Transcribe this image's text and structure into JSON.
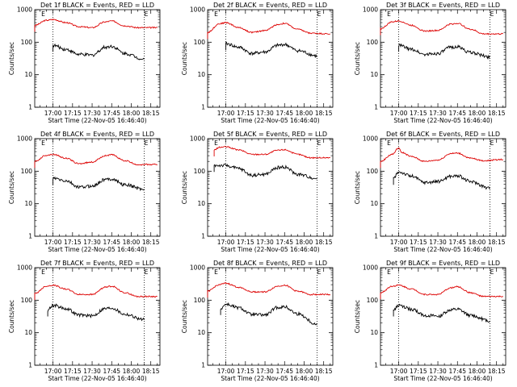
{
  "colors": {
    "events": "#000000",
    "lld": "#dd0000",
    "axis": "#000000",
    "background": "#ffffff"
  },
  "marker_label": "E",
  "chart_data": [
    {
      "type": "line",
      "title": "Det 1f BLACK = Events, RED = LLD",
      "xlabel": "Start Time (22-Nov-05 16:46:40)",
      "ylabel": "Counts/sec",
      "y_log": true,
      "ylim": [
        1,
        1000
      ],
      "x_tick_labels": [
        "17:00",
        "17:15",
        "17:30",
        "17:45",
        "18:00",
        "18:15"
      ],
      "y_tick_labels": [
        "1",
        "10",
        "100",
        "1000"
      ],
      "markers": [
        "16:51",
        "17:00",
        "18:10"
      ],
      "series": [
        {
          "points": [
            [
              "16:46",
              330
            ],
            [
              "16:55",
              470
            ],
            [
              "17:00",
              500
            ],
            [
              "17:10",
              400
            ],
            [
              "17:20",
              300
            ],
            [
              "17:30",
              280
            ],
            [
              "17:40",
              420
            ],
            [
              "17:45",
              450
            ],
            [
              "17:55",
              320
            ],
            [
              "18:05",
              280
            ],
            [
              "18:20",
              280
            ]
          ]
        },
        {
          "points": [
            [
              "17:00",
              80
            ],
            [
              "17:10",
              60
            ],
            [
              "17:20",
              42
            ],
            [
              "17:30",
              40
            ],
            [
              "17:40",
              70
            ],
            [
              "17:45",
              75
            ],
            [
              "17:55",
              45
            ],
            [
              "18:10",
              30
            ]
          ]
        }
      ]
    },
    {
      "type": "line",
      "title": "Det 2f BLACK = Events, RED = LLD",
      "xlabel": "Start Time (22-Nov-05 16:46:40)",
      "ylabel": "Counts/sec",
      "y_log": true,
      "ylim": [
        1,
        1000
      ],
      "x_tick_labels": [
        "17:00",
        "17:15",
        "17:30",
        "17:45",
        "18:00",
        "18:15"
      ],
      "y_tick_labels": [
        "1",
        "10",
        "100",
        "1000"
      ],
      "markers": [
        "16:51",
        "17:00",
        "18:10"
      ],
      "series": [
        {
          "points": [
            [
              "16:46",
              200
            ],
            [
              "16:55",
              370
            ],
            [
              "17:00",
              400
            ],
            [
              "17:10",
              280
            ],
            [
              "17:20",
              200
            ],
            [
              "17:30",
              230
            ],
            [
              "17:40",
              350
            ],
            [
              "17:45",
              380
            ],
            [
              "17:55",
              250
            ],
            [
              "18:05",
              190
            ],
            [
              "18:20",
              180
            ]
          ]
        },
        {
          "points": [
            [
              "17:00",
              90
            ],
            [
              "17:10",
              70
            ],
            [
              "17:20",
              45
            ],
            [
              "17:30",
              50
            ],
            [
              "17:40",
              80
            ],
            [
              "17:45",
              85
            ],
            [
              "17:55",
              55
            ],
            [
              "18:10",
              38
            ]
          ]
        }
      ]
    },
    {
      "type": "line",
      "title": "Det 3f BLACK = Events, RED = LLD",
      "xlabel": "Start Time (22-Nov-05 16:46:40)",
      "ylabel": "Counts/sec",
      "y_log": true,
      "ylim": [
        1,
        1000
      ],
      "x_tick_labels": [
        "17:00",
        "17:15",
        "17:30",
        "17:45",
        "18:00",
        "18:15"
      ],
      "y_tick_labels": [
        "1",
        "10",
        "100",
        "1000"
      ],
      "markers": [
        "16:51",
        "17:00",
        "18:10"
      ],
      "series": [
        {
          "points": [
            [
              "16:46",
              260
            ],
            [
              "16:55",
              420
            ],
            [
              "17:00",
              450
            ],
            [
              "17:10",
              330
            ],
            [
              "17:20",
              220
            ],
            [
              "17:30",
              230
            ],
            [
              "17:40",
              360
            ],
            [
              "17:45",
              380
            ],
            [
              "17:55",
              250
            ],
            [
              "18:05",
              180
            ],
            [
              "18:20",
              180
            ]
          ]
        },
        {
          "points": [
            [
              "17:00",
              80
            ],
            [
              "17:10",
              60
            ],
            [
              "17:20",
              42
            ],
            [
              "17:30",
              45
            ],
            [
              "17:40",
              70
            ],
            [
              "17:45",
              72
            ],
            [
              "17:55",
              48
            ],
            [
              "18:10",
              35
            ]
          ]
        }
      ]
    },
    {
      "type": "line",
      "title": "Det 4f BLACK = Events, RED = LLD",
      "xlabel": "Start Time (22-Nov-05 16:46:40)",
      "ylabel": "Counts/sec",
      "y_log": true,
      "ylim": [
        1,
        1000
      ],
      "x_tick_labels": [
        "17:00",
        "17:15",
        "17:30",
        "17:45",
        "18:00",
        "18:15"
      ],
      "y_tick_labels": [
        "1",
        "10",
        "100",
        "1000"
      ],
      "markers": [
        "16:51",
        "17:00",
        "18:10"
      ],
      "series": [
        {
          "points": [
            [
              "16:46",
              200
            ],
            [
              "16:55",
              310
            ],
            [
              "17:00",
              330
            ],
            [
              "17:10",
              250
            ],
            [
              "17:20",
              170
            ],
            [
              "17:30",
              190
            ],
            [
              "17:40",
              300
            ],
            [
              "17:45",
              320
            ],
            [
              "17:55",
              210
            ],
            [
              "18:05",
              160
            ],
            [
              "18:20",
              160
            ]
          ]
        },
        {
          "points": [
            [
              "17:00",
              60
            ],
            [
              "17:10",
              50
            ],
            [
              "17:20",
              32
            ],
            [
              "17:30",
              35
            ],
            [
              "17:40",
              55
            ],
            [
              "17:45",
              58
            ],
            [
              "17:55",
              38
            ],
            [
              "18:10",
              28
            ]
          ]
        }
      ]
    },
    {
      "type": "line",
      "title": "Det 5f BLACK = Events, RED = LLD",
      "xlabel": "Start Time (22-Nov-05 16:46:40)",
      "ylabel": "Counts/sec",
      "y_log": true,
      "ylim": [
        1,
        1000
      ],
      "x_tick_labels": [
        "17:00",
        "17:15",
        "17:30",
        "17:45",
        "18:00",
        "18:15"
      ],
      "y_tick_labels": [
        "1",
        "10",
        "100",
        "1000"
      ],
      "markers": [
        "16:51",
        "17:00",
        "18:10"
      ],
      "series": [
        {
          "points": [
            [
              "16:51",
              450
            ],
            [
              "16:55",
              540
            ],
            [
              "17:00",
              560
            ],
            [
              "17:10",
              450
            ],
            [
              "17:20",
              330
            ],
            [
              "17:30",
              330
            ],
            [
              "17:40",
              440
            ],
            [
              "17:45",
              460
            ],
            [
              "17:55",
              330
            ],
            [
              "18:05",
              260
            ],
            [
              "18:20",
              260
            ]
          ]
        },
        {
          "points": [
            [
              "16:51",
              150
            ],
            [
              "17:00",
              150
            ],
            [
              "17:10",
              120
            ],
            [
              "17:20",
              75
            ],
            [
              "17:30",
              80
            ],
            [
              "17:40",
              130
            ],
            [
              "17:45",
              135
            ],
            [
              "17:55",
              80
            ],
            [
              "18:10",
              60
            ]
          ]
        }
      ]
    },
    {
      "type": "line",
      "title": "Det 6f BLACK = Events, RED = LLD",
      "xlabel": "Start Time (22-Nov-05 16:46:40)",
      "ylabel": "Counts/sec",
      "y_log": true,
      "ylim": [
        1,
        1000
      ],
      "x_tick_labels": [
        "17:00",
        "17:15",
        "17:30",
        "17:45",
        "18:00",
        "18:15"
      ],
      "y_tick_labels": [
        "1",
        "10",
        "100",
        "1000"
      ],
      "markers": [
        "16:51",
        "17:00",
        "18:10"
      ],
      "series": [
        {
          "points": [
            [
              "16:46",
              200
            ],
            [
              "16:55",
              330
            ],
            [
              "17:00",
              520
            ],
            [
              "17:02",
              380
            ],
            [
              "17:10",
              280
            ],
            [
              "17:20",
              200
            ],
            [
              "17:30",
              220
            ],
            [
              "17:40",
              350
            ],
            [
              "17:45",
              360
            ],
            [
              "17:55",
              250
            ],
            [
              "18:05",
              210
            ],
            [
              "18:20",
              230
            ]
          ]
        },
        {
          "points": [
            [
              "16:56",
              60
            ],
            [
              "17:00",
              95
            ],
            [
              "17:10",
              70
            ],
            [
              "17:20",
              45
            ],
            [
              "17:30",
              48
            ],
            [
              "17:40",
              70
            ],
            [
              "17:45",
              72
            ],
            [
              "17:55",
              48
            ],
            [
              "18:10",
              30
            ]
          ]
        }
      ]
    },
    {
      "type": "line",
      "title": "Det 7f BLACK = Events, RED = LLD",
      "xlabel": "Start Time (22-Nov-05 16:46:40)",
      "ylabel": "Counts/sec",
      "y_log": true,
      "ylim": [
        1,
        1000
      ],
      "x_tick_labels": [
        "17:00",
        "17:15",
        "17:30",
        "17:45",
        "18:00",
        "18:15"
      ],
      "y_tick_labels": [
        "1",
        "10",
        "100",
        "1000"
      ],
      "markers": [
        "16:51",
        "17:00",
        "18:10"
      ],
      "series": [
        {
          "points": [
            [
              "16:46",
              160
            ],
            [
              "16:55",
              270
            ],
            [
              "17:00",
              290
            ],
            [
              "17:10",
              220
            ],
            [
              "17:20",
              150
            ],
            [
              "17:30",
              150
            ],
            [
              "17:40",
              250
            ],
            [
              "17:45",
              270
            ],
            [
              "17:55",
              170
            ],
            [
              "18:05",
              130
            ],
            [
              "18:20",
              130
            ]
          ]
        },
        {
          "points": [
            [
              "16:56",
              50
            ],
            [
              "17:00",
              70
            ],
            [
              "17:10",
              55
            ],
            [
              "17:20",
              35
            ],
            [
              "17:30",
              33
            ],
            [
              "17:40",
              55
            ],
            [
              "17:45",
              58
            ],
            [
              "17:55",
              37
            ],
            [
              "18:10",
              25
            ]
          ]
        }
      ]
    },
    {
      "type": "line",
      "title": "Det 8f BLACK = Events, RED = LLD",
      "xlabel": "Start Time (22-Nov-05 16:46:40)",
      "ylabel": "Counts/sec",
      "y_log": true,
      "ylim": [
        1,
        1000
      ],
      "x_tick_labels": [
        "17:00",
        "17:15",
        "17:30",
        "17:45",
        "18:00",
        "18:15"
      ],
      "y_tick_labels": [
        "1",
        "10",
        "100",
        "1000"
      ],
      "markers": [
        "16:51",
        "17:00",
        "18:10"
      ],
      "series": [
        {
          "points": [
            [
              "16:46",
              190
            ],
            [
              "16:55",
              300
            ],
            [
              "17:00",
              330
            ],
            [
              "17:10",
              250
            ],
            [
              "17:20",
              180
            ],
            [
              "17:30",
              180
            ],
            [
              "17:40",
              270
            ],
            [
              "17:45",
              290
            ],
            [
              "17:55",
              190
            ],
            [
              "18:05",
              150
            ],
            [
              "18:20",
              150
            ]
          ]
        },
        {
          "points": [
            [
              "16:56",
              55
            ],
            [
              "17:00",
              75
            ],
            [
              "17:10",
              58
            ],
            [
              "17:20",
              36
            ],
            [
              "17:30",
              35
            ],
            [
              "17:40",
              60
            ],
            [
              "17:45",
              62
            ],
            [
              "17:55",
              38
            ],
            [
              "18:10",
              18
            ]
          ]
        }
      ]
    },
    {
      "type": "line",
      "title": "Det 9f BLACK = Events, RED = LLD",
      "xlabel": "Start Time (22-Nov-05 16:46:40)",
      "ylabel": "Counts/sec",
      "y_log": true,
      "ylim": [
        1,
        1000
      ],
      "x_tick_labels": [
        "17:00",
        "17:15",
        "17:30",
        "17:45",
        "18:00",
        "18:15"
      ],
      "y_tick_labels": [
        "1",
        "10",
        "100",
        "1000"
      ],
      "markers": [
        "16:51",
        "17:00",
        "18:10"
      ],
      "series": [
        {
          "points": [
            [
              "16:46",
              170
            ],
            [
              "16:55",
              270
            ],
            [
              "17:00",
              290
            ],
            [
              "17:10",
              220
            ],
            [
              "17:20",
              150
            ],
            [
              "17:30",
              150
            ],
            [
              "17:40",
              240
            ],
            [
              "17:45",
              260
            ],
            [
              "17:55",
              170
            ],
            [
              "18:05",
              130
            ],
            [
              "18:20",
              130
            ]
          ]
        },
        {
          "points": [
            [
              "16:56",
              50
            ],
            [
              "17:00",
              68
            ],
            [
              "17:10",
              52
            ],
            [
              "17:20",
              34
            ],
            [
              "17:30",
              32
            ],
            [
              "17:40",
              50
            ],
            [
              "17:45",
              52
            ],
            [
              "17:55",
              34
            ],
            [
              "18:10",
              23
            ]
          ]
        }
      ]
    }
  ]
}
